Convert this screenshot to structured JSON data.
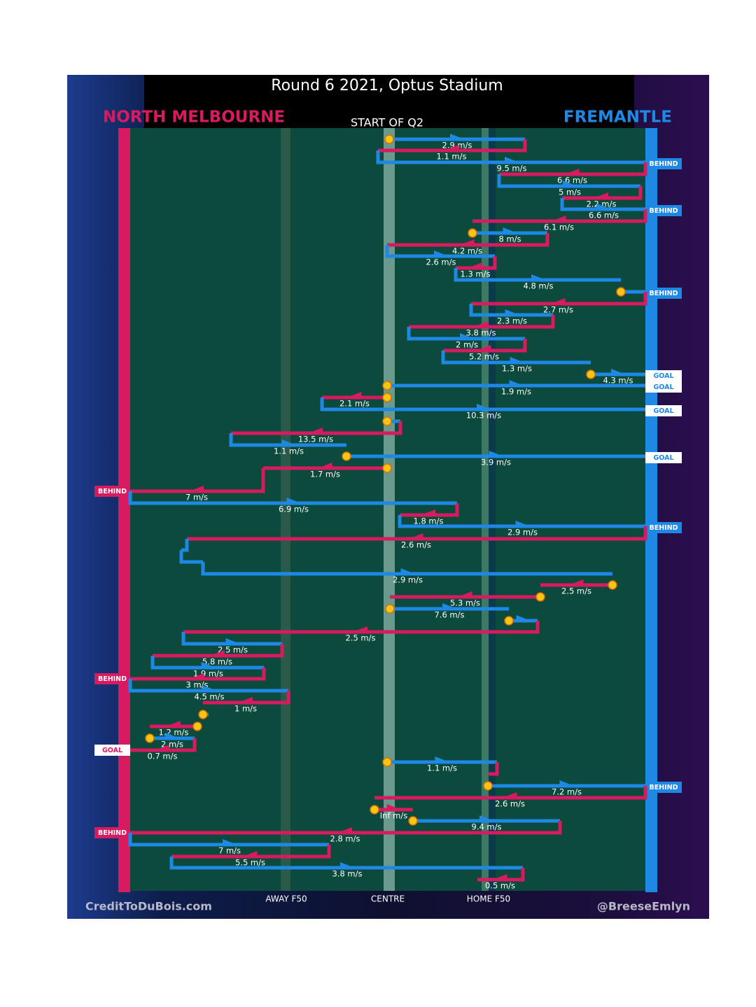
{
  "header": {
    "title": "Round 6 2021, Optus Stadium",
    "home_team": "NORTH MELBOURNE",
    "away_team": "FREMANTLE",
    "period": "START OF Q2"
  },
  "moves": [
    {
      "speed": "2.9 m/s"
    },
    {
      "speed": "1.1 m/s"
    },
    {
      "speed": "9.5 m/s",
      "outcome": "BEHIND"
    },
    {
      "speed": "6.6 m/s"
    },
    {
      "speed": "5 m/s"
    },
    {
      "speed": "2.2 m/s"
    },
    {
      "speed": "6.6 m/s",
      "outcome": "BEHIND"
    },
    {
      "speed": "6.1 m/s"
    },
    {
      "speed": "8 m/s"
    },
    {
      "speed": "4.2 m/s"
    },
    {
      "speed": "2.6 m/s"
    },
    {
      "speed": "1.3 m/s"
    },
    {
      "speed": "4.8 m/s"
    },
    {
      "outcome": "BEHIND"
    },
    {
      "speed": "2.7 m/s"
    },
    {
      "speed": "2.3 m/s"
    },
    {
      "speed": "3.8 m/s"
    },
    {
      "speed": "2 m/s"
    },
    {
      "speed": "5.2 m/s"
    },
    {
      "speed": "1.3 m/s"
    },
    {
      "speed": "4.3 m/s",
      "outcome": "GOAL"
    },
    {
      "speed": "1.9 m/s",
      "outcome": "GOAL"
    },
    {
      "speed": "2.1 m/s"
    },
    {
      "speed": "10.3 m/s",
      "outcome": "GOAL"
    },
    {
      "speed": "13.5 m/s"
    },
    {
      "speed": "1.1 m/s"
    },
    {
      "speed": "3.9 m/s",
      "outcome": "GOAL"
    },
    {
      "speed": "1.7 m/s"
    },
    {
      "speed": "7 m/s",
      "outcome": "BEHIND"
    },
    {
      "speed": "6.9 m/s"
    },
    {
      "speed": "1.8 m/s"
    },
    {
      "speed": "2.9 m/s",
      "outcome": "BEHIND"
    },
    {
      "speed": "2.6 m/s"
    },
    {
      "speed": "2.9 m/s"
    },
    {
      "speed": "2.5 m/s"
    },
    {
      "speed": "5.3 m/s"
    },
    {
      "speed": "7.6 m/s"
    },
    {
      "speed": "2.5 m/s"
    },
    {
      "speed": "2.5 m/s"
    },
    {
      "speed": "5.8 m/s"
    },
    {
      "speed": "1.9 m/s"
    },
    {
      "speed": "3 m/s",
      "outcome": "BEHIND"
    },
    {
      "speed": "4.5 m/s"
    },
    {
      "speed": "1 m/s"
    },
    {
      "speed": "1.2 m/s"
    },
    {
      "speed": "2 m/s"
    },
    {
      "speed": "0.7 m/s",
      "outcome": "GOAL"
    },
    {
      "speed": "1.1 m/s"
    },
    {
      "speed": "7.2 m/s",
      "outcome": "BEHIND"
    },
    {
      "speed": "2.6 m/s"
    },
    {
      "speed": "Inf m/s"
    },
    {
      "speed": "9.4 m/s"
    },
    {
      "speed": "2.8 m/s",
      "outcome": "BEHIND"
    },
    {
      "speed": "7 m/s"
    },
    {
      "speed": "5.5 m/s"
    },
    {
      "speed": "3.8 m/s"
    },
    {
      "speed": "0.5 m/s"
    }
  ],
  "field_labels": [
    "AWAY F50",
    "CENTRE",
    "HOME F50"
  ],
  "footer": {
    "left": "CreditToDuBois.com",
    "right": "@BreeseEmlyn"
  }
}
